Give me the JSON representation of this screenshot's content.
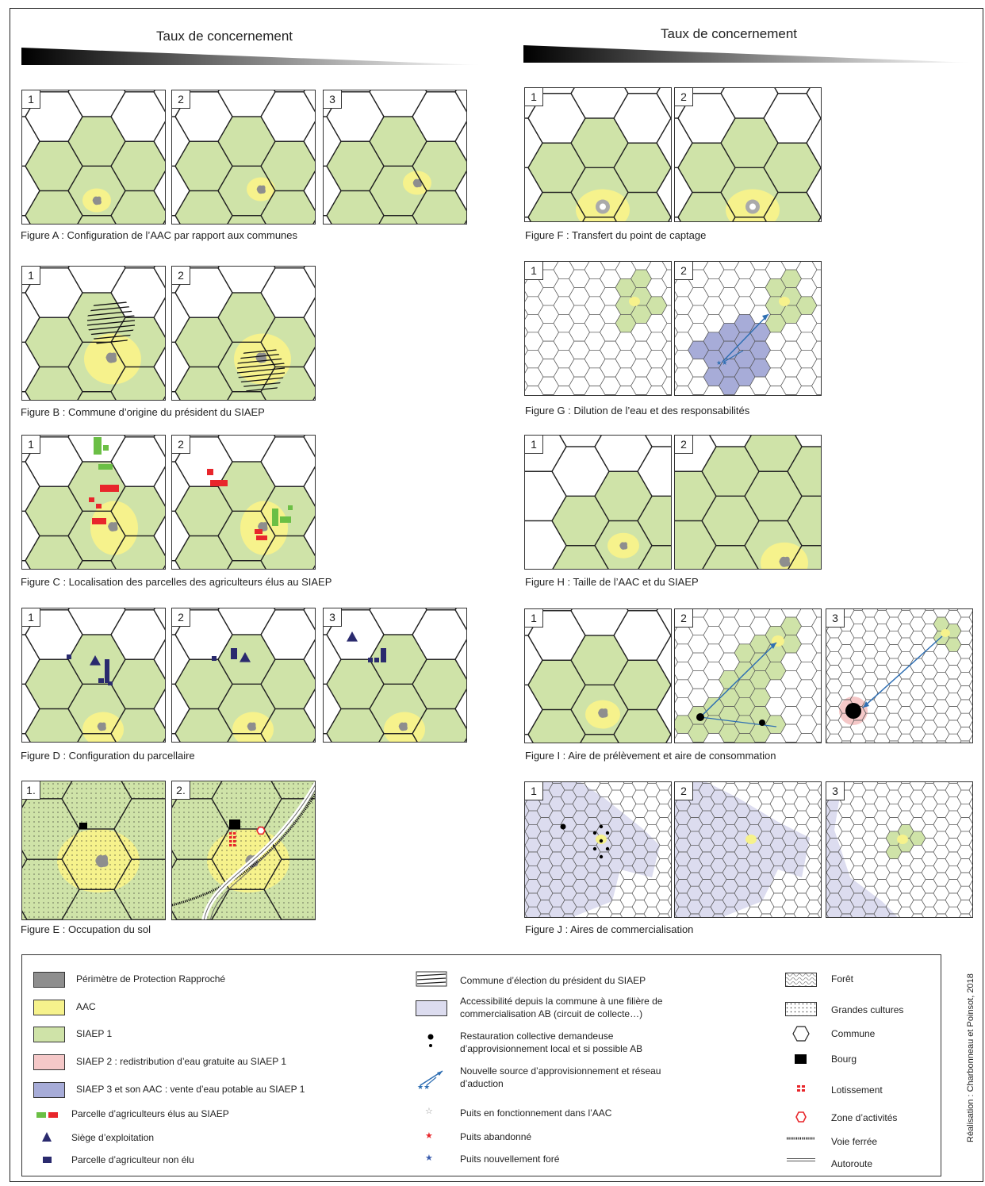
{
  "header": {
    "left_title": "Taux de concernement",
    "right_title": "Taux de concernement"
  },
  "figures": {
    "A": {
      "caption": "Figure A : Configuration de l’AAC par rapport aux communes",
      "panels": [
        "1",
        "2",
        "3"
      ]
    },
    "B": {
      "caption": "Figure B : Commune d’origine du président du SIAEP",
      "panels": [
        "1",
        "2"
      ]
    },
    "C": {
      "caption": "Figure C : Localisation des parcelles des agriculteurs élus au SIAEP",
      "panels": [
        "1",
        "2"
      ]
    },
    "D": {
      "caption": "Figure D : Configuration du parcellaire",
      "panels": [
        "1",
        "2",
        "3"
      ]
    },
    "E": {
      "caption": "Figure E : Occupation du sol",
      "panels": [
        "1.",
        "2."
      ]
    },
    "F": {
      "caption": "Figure F : Transfert du point de captage",
      "panels": [
        "1",
        "2"
      ]
    },
    "G": {
      "caption": "Figure G : Dilution de l’eau et des responsabilités",
      "panels": [
        "1",
        "2"
      ]
    },
    "H": {
      "caption": "Figure H : Taille de l’AAC et du SIAEP",
      "panels": [
        "1",
        "2"
      ]
    },
    "I": {
      "caption": "Figure I : Aire de prélèvement et aire de consommation",
      "panels": [
        "1",
        "2",
        "3"
      ]
    },
    "J": {
      "caption": "Figure J : Aires de commercialisation",
      "panels": [
        "1",
        "2",
        "3"
      ]
    }
  },
  "legend": {
    "col1": [
      "Périmètre de Protection Rapproché",
      "AAC",
      "SIAEP 1",
      "SIAEP 2 : redistribution d’eau gratuite au SIAEP 1",
      "SIAEP 3 et son AAC : vente d’eau potable au SIAEP 1",
      "Parcelle d’agriculteurs élus au SIAEP",
      "Siège d’exploitation",
      "Parcelle d’agriculteur non élu"
    ],
    "col2": [
      "Commune d’élection du président du SIAEP",
      "Accessibilité depuis la commune à une filière de commercialisation AB (circuit de collecte…)",
      "Restauration collective demandeuse d’approvisionnement local et si possible AB",
      "Nouvelle source d’approvisionnement et réseau d’aduction",
      "Puits en fonctionnement dans l’AAC",
      "Puits abandonné",
      "Puits nouvellement foré"
    ],
    "col3": [
      "Forêt",
      "Grandes cultures",
      "Commune",
      "Bourg",
      "Lotissement",
      "Zone d’activités",
      "Voie ferrée",
      "Autoroute"
    ]
  },
  "credit": "Réalisation : Charbonneau et Poinsot, 2018",
  "colors": {
    "siaep": "#cfe3a8",
    "aac": "#f6f28c",
    "ppr": "#8e8e8e",
    "siaep3": "#a7acd8",
    "access": "#dcdcef",
    "red": "#e8262b",
    "green": "#6bbf45",
    "navy": "#2a2a6e",
    "pink": "#f5c8c8"
  }
}
